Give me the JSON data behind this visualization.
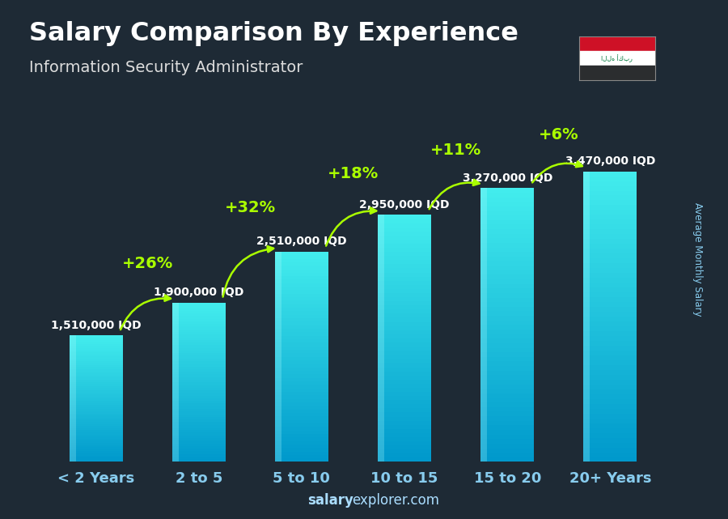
{
  "title": "Salary Comparison By Experience",
  "subtitle": "Information Security Administrator",
  "categories": [
    "< 2 Years",
    "2 to 5",
    "5 to 10",
    "10 to 15",
    "15 to 20",
    "20+ Years"
  ],
  "values": [
    1510000,
    1900000,
    2510000,
    2950000,
    3270000,
    3470000
  ],
  "labels": [
    "1,510,000 IQD",
    "1,900,000 IQD",
    "2,510,000 IQD",
    "2,950,000 IQD",
    "3,270,000 IQD",
    "3,470,000 IQD"
  ],
  "pct_labels": [
    "+26%",
    "+32%",
    "+18%",
    "+11%",
    "+6%"
  ],
  "bg_color": "#1e2a35",
  "title_color": "#ffffff",
  "subtitle_color": "#dddddd",
  "pct_color": "#aaff00",
  "axis_label_color": "#88ccee",
  "footer_salary_color": "#aaddff",
  "ylabel": "Average Monthly Salary",
  "ylim": [
    0,
    4400000
  ],
  "bar_width": 0.52,
  "pct_fontsize": 14,
  "label_fontsize": 10,
  "xtick_fontsize": 13
}
